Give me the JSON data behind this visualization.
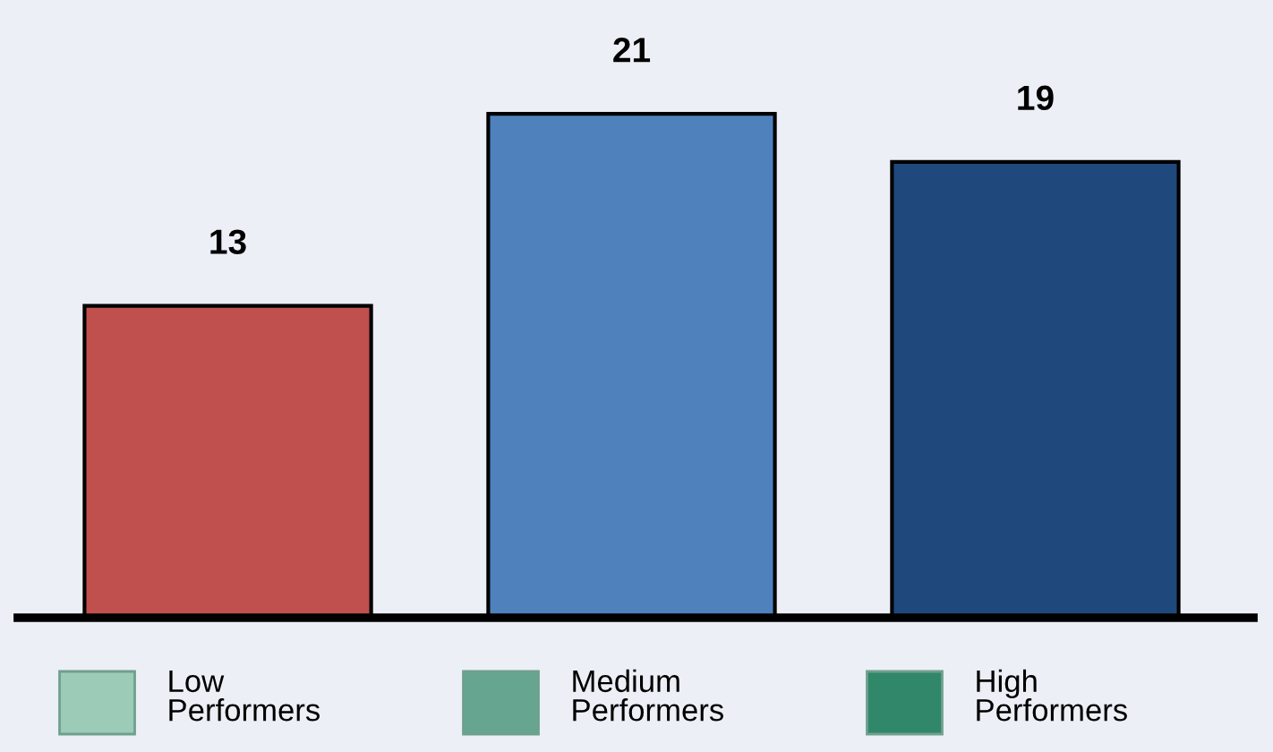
{
  "chart_data": {
    "type": "bar",
    "categories": [
      "Low Performers",
      "Medium Performers",
      "High Performers"
    ],
    "values": [
      13,
      21,
      19
    ],
    "colors": [
      "#c0504d",
      "#4f81bd",
      "#1f497d"
    ],
    "data_labels": true
  }
}
